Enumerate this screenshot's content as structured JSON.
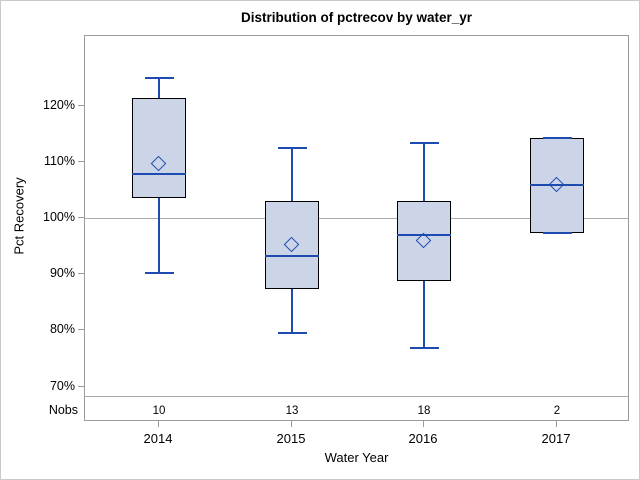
{
  "figure": {
    "title": "Distribution of pctrecov by water_yr"
  },
  "axes": {
    "y_label": "Pct Recovery",
    "x_label": "Water Year",
    "nobs_label": "Nobs"
  },
  "colors": {
    "box_fill": "#ccd5e7",
    "box_border": "#000000",
    "line_blue": "#1e4bb0",
    "wall_gray": "#9b9b9b",
    "ref_gray": "#ababab",
    "figure_border": "#c9c9c9"
  },
  "chart_data": {
    "type": "boxplot",
    "title": "Distribution of pctrecov by water_yr",
    "xlabel": "Water Year",
    "ylabel": "Pct Recovery",
    "ylim": [
      68,
      132
    ],
    "reference_line": 100,
    "legend": "none",
    "yticks": [
      {
        "label": "120%",
        "value": 120
      },
      {
        "label": "110%",
        "value": 110
      },
      {
        "label": "100%",
        "value": 100
      },
      {
        "label": "90%",
        "value": 90
      },
      {
        "label": "80%",
        "value": 80
      },
      {
        "label": "70%",
        "value": 70
      }
    ],
    "categories": [
      "2014",
      "2015",
      "2016",
      "2017"
    ],
    "nobs_row_label": "Nobs",
    "groups": [
      {
        "category": "2014",
        "nobs": "10",
        "min": 90.3,
        "q1": 103.7,
        "median": 108.0,
        "mean": 109.7,
        "q3": 121.4,
        "max": 125.0
      },
      {
        "category": "2015",
        "nobs": "13",
        "min": 79.7,
        "q1": 87.5,
        "median": 93.3,
        "mean": 95.3,
        "q3": 103.1,
        "max": 112.5
      },
      {
        "category": "2016",
        "nobs": "18",
        "min": 77.0,
        "q1": 88.9,
        "median": 97.0,
        "mean": 96.0,
        "q3": 103.2,
        "max": 113.4
      },
      {
        "category": "2017",
        "nobs": "2",
        "min": 97.4,
        "q1": 97.4,
        "median": 105.9,
        "mean": 105.9,
        "q3": 114.3,
        "max": 114.3
      }
    ]
  }
}
